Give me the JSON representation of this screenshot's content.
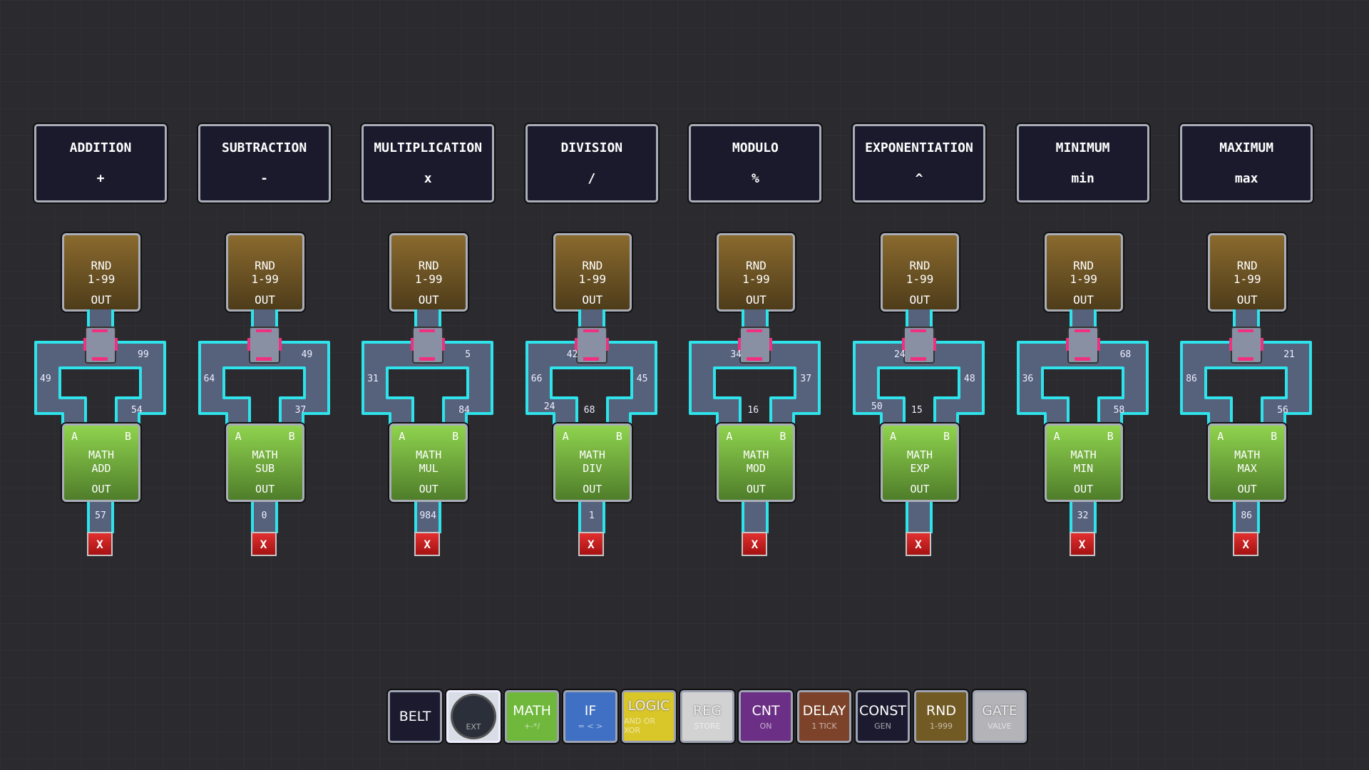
{
  "columns": [
    {
      "title": "ADDITION",
      "symbol": "+",
      "rnd": [
        "RND",
        "1-99",
        "OUT"
      ],
      "math": [
        "MATH",
        "ADD"
      ],
      "wires": {
        "top_right": "99",
        "left": "49",
        "bottom_right": "54"
      },
      "output": "57"
    },
    {
      "title": "SUBTRACTION",
      "symbol": "-",
      "rnd": [
        "RND",
        "1-99",
        "OUT"
      ],
      "math": [
        "MATH",
        "SUB"
      ],
      "wires": {
        "top_right": "49",
        "left": "64",
        "bottom_right": "37"
      },
      "output": "0"
    },
    {
      "title": "MULTIPLICATION",
      "symbol": "x",
      "rnd": [
        "RND",
        "1-99",
        "OUT"
      ],
      "math": [
        "MATH",
        "MUL"
      ],
      "wires": {
        "top_right": "5",
        "left": "31",
        "bottom_right": "84"
      },
      "output": "984"
    },
    {
      "title": "DIVISION",
      "symbol": "/",
      "rnd": [
        "RND",
        "1-99",
        "OUT"
      ],
      "math": [
        "MATH",
        "DIV"
      ],
      "wires": {
        "top_left": "42",
        "left": "66",
        "bottom_outer_left": "24",
        "bottom_left": "68",
        "right": "45"
      },
      "output": "1"
    },
    {
      "title": "MODULO",
      "symbol": "%",
      "rnd": [
        "RND",
        "1-99",
        "OUT"
      ],
      "math": [
        "MATH",
        "MOD"
      ],
      "wires": {
        "top_left": "34",
        "right": "37",
        "bottom_left": "16"
      },
      "output": ""
    },
    {
      "title": "EXPONENTIATION",
      "symbol": "^",
      "rnd": [
        "RND",
        "1-99",
        "OUT"
      ],
      "math": [
        "MATH",
        "EXP"
      ],
      "wires": {
        "top_left": "24",
        "right": "48",
        "bottom_outer_left": "50",
        "bottom_left": "15"
      },
      "output": ""
    },
    {
      "title": "MINIMUM",
      "symbol": "min",
      "rnd": [
        "RND",
        "1-99",
        "OUT"
      ],
      "math": [
        "MATH",
        "MIN"
      ],
      "wires": {
        "top_right": "68",
        "left": "36",
        "bottom_right": "58"
      },
      "output": "32"
    },
    {
      "title": "MAXIMUM",
      "symbol": "max",
      "rnd": [
        "RND",
        "1-99",
        "OUT"
      ],
      "math": [
        "MATH",
        "MAX"
      ],
      "wires": {
        "top_right": "21",
        "left": "86",
        "bottom_right": "56"
      },
      "output": "86"
    }
  ],
  "labels": {
    "input_a": "A",
    "input_b": "B",
    "out": "OUT",
    "delete": "X"
  },
  "toolbar": [
    {
      "label": "BELT",
      "sub": "",
      "color": "#1c1a2e"
    },
    {
      "label": "",
      "sub": "EXT",
      "color": "#d8dde6"
    },
    {
      "label": "MATH",
      "sub": "+-*/",
      "color": "#6fb83c"
    },
    {
      "label": "IF",
      "sub": "= < >",
      "color": "#3f70c4"
    },
    {
      "label": "LOGIC",
      "sub": "AND OR XOR",
      "color": "#d9c629"
    },
    {
      "label": "REG",
      "sub": "STORE",
      "color": "#d2d2d2"
    },
    {
      "label": "CNT",
      "sub": "ON",
      "color": "#6b2f86"
    },
    {
      "label": "DELAY",
      "sub": "1 TICK",
      "color": "#7c432a"
    },
    {
      "label": "CONST",
      "sub": "GEN",
      "color": "#1c1a2e"
    },
    {
      "label": "RND",
      "sub": "1-999",
      "color": "#725a24"
    },
    {
      "label": "GATE",
      "sub": "VALVE",
      "color": "#b4b4b8"
    }
  ],
  "colors": {
    "belt_edge": "#2fe3ea",
    "belt_fill": "#56627c",
    "splitter_marker": "#f0307e",
    "delete": "#d42020"
  }
}
